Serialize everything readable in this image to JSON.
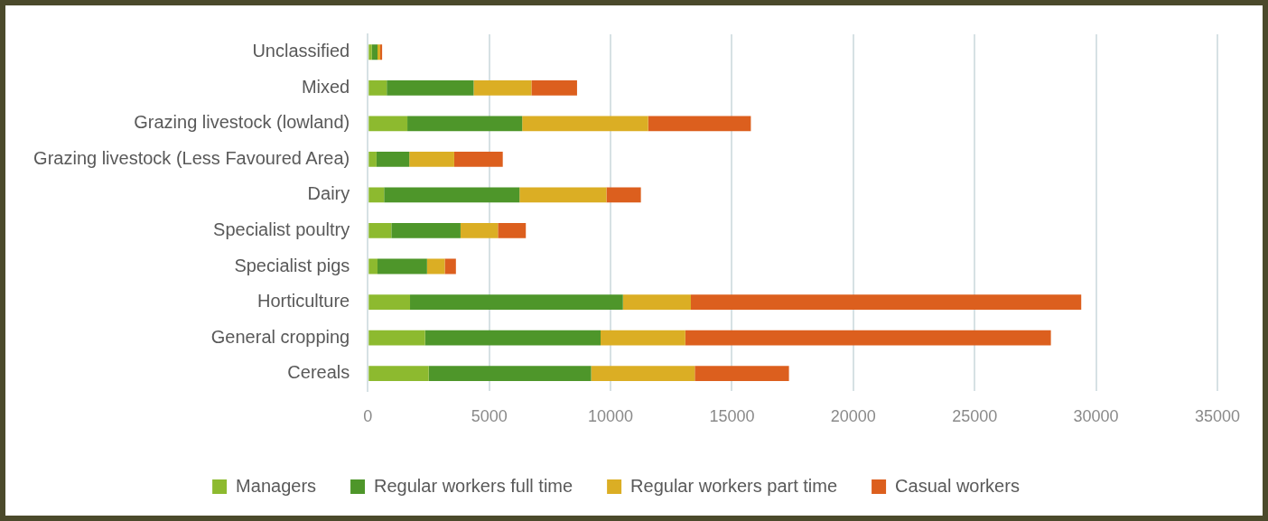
{
  "chart_data": {
    "type": "bar",
    "orientation": "horizontal",
    "stacked": true,
    "categories": [
      "Unclassified",
      "Mixed",
      "Grazing livestock (lowland)",
      "Grazing livestock (Less Favoured Area)",
      "Dairy",
      "Specialist poultry",
      "Specialist pigs",
      "Horticulture",
      "General cropping",
      "Cereals"
    ],
    "series": [
      {
        "name": "Managers",
        "color": "#8dba2f",
        "values": [
          170,
          780,
          1630,
          360,
          670,
          970,
          400,
          1740,
          2360,
          2510
        ]
      },
      {
        "name": "Regular workers full time",
        "color": "#4e962a",
        "values": [
          230,
          3580,
          4730,
          1350,
          5580,
          2850,
          2040,
          8770,
          7230,
          6690
        ]
      },
      {
        "name": "Regular workers part time",
        "color": "#dbae24",
        "values": [
          110,
          2380,
          5190,
          1850,
          3580,
          1540,
          730,
          2800,
          3490,
          4270
        ]
      },
      {
        "name": "Casual workers",
        "color": "#dc5f1e",
        "values": [
          80,
          1880,
          4230,
          2000,
          1420,
          1150,
          460,
          16080,
          15060,
          3880
        ]
      }
    ],
    "xlim": [
      0,
      35000
    ],
    "xticks": [
      0,
      5000,
      10000,
      15000,
      20000,
      25000,
      30000,
      35000
    ],
    "grid": "x",
    "legend": "bottom"
  }
}
